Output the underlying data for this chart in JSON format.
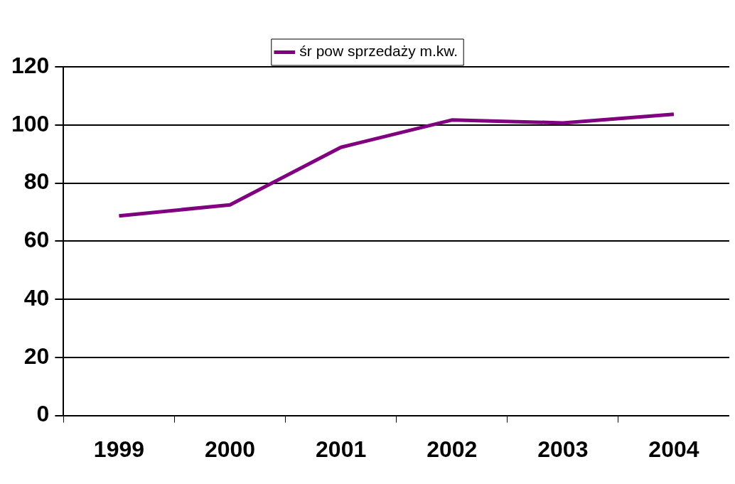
{
  "chart_data": {
    "type": "line",
    "categories": [
      "1999",
      "2000",
      "2001",
      "2002",
      "2003",
      "2004"
    ],
    "series": [
      {
        "name": "śr pow sprzedaży m.kw.",
        "color": "#800080",
        "values": [
          68.7,
          72.5,
          92.3,
          101.7,
          100.7,
          103.7
        ]
      }
    ],
    "ylim": [
      0,
      120
    ],
    "yticks": [
      0,
      20,
      40,
      60,
      80,
      100,
      120
    ],
    "grid": "y",
    "legend": "top",
    "marker": "none",
    "line_style": "solid"
  }
}
